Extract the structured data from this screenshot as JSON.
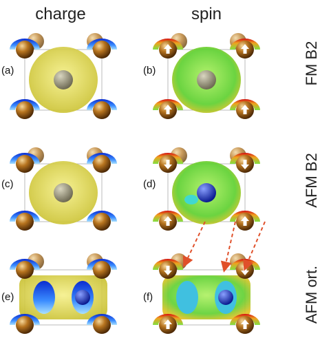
{
  "columns": [
    "charge",
    "spin"
  ],
  "panels": [
    "(a)",
    "(b)",
    "(c)",
    "(d)",
    "(e)",
    "(f)"
  ],
  "rows": [
    "FM B2",
    "AFM B2",
    "AFM ort."
  ]
}
